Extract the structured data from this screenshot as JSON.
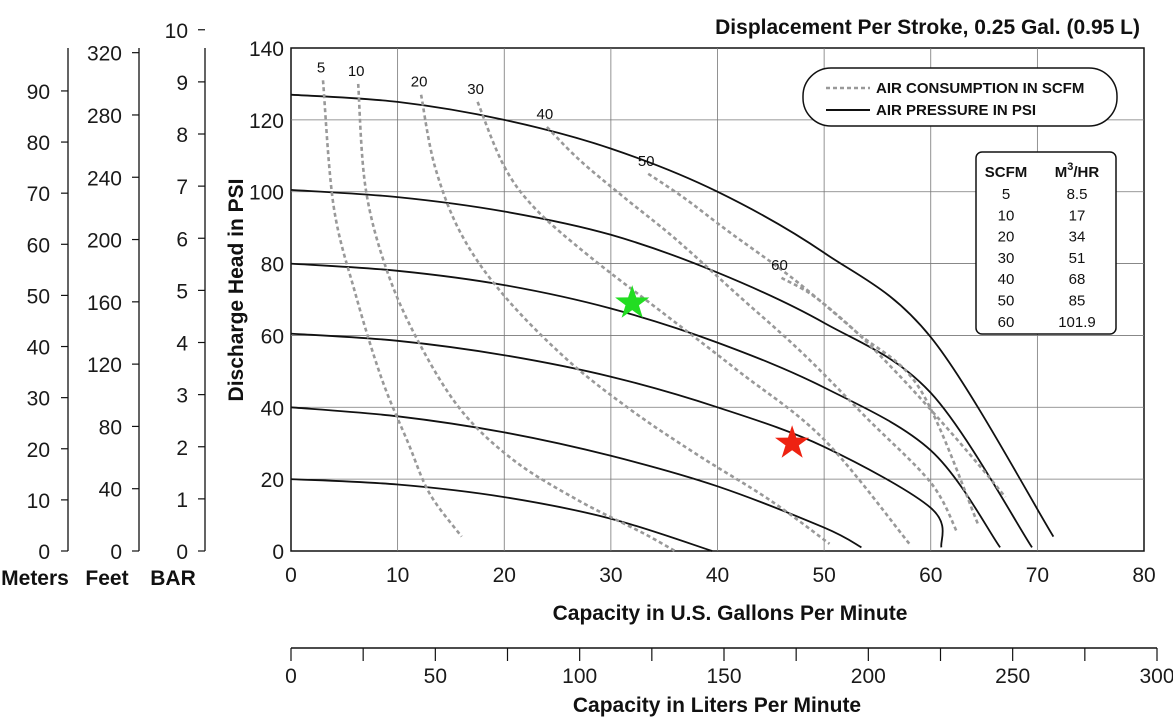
{
  "chart_data": {
    "type": "line",
    "title": "Displacement Per Stroke, 0.25 Gal. (0.95 L)",
    "xlabel": "Capacity in U.S. Gallons Per Minute",
    "ylabel": "Discharge Head in PSI",
    "xlim": [
      0,
      80
    ],
    "ylim": [
      0,
      140
    ],
    "x_ticks": [
      "0",
      "10",
      "20",
      "30",
      "40",
      "50",
      "60",
      "70",
      "80"
    ],
    "y_ticks": [
      "0",
      "20",
      "40",
      "60",
      "80",
      "100",
      "120",
      "140"
    ],
    "grid": true,
    "secondary_x_axis": {
      "label": "Capacity in Liters Per Minute",
      "range": [
        0,
        300
      ],
      "tick_labels": [
        "0",
        "50",
        "100",
        "150",
        "200",
        "250",
        "300"
      ]
    },
    "left_scales": [
      {
        "name": "Meters",
        "range": [
          0,
          98.4
        ],
        "tick_labels": [
          "0",
          "10",
          "20",
          "30",
          "40",
          "50",
          "60",
          "70",
          "80",
          "90"
        ]
      },
      {
        "name": "Feet",
        "range": [
          0,
          323
        ],
        "tick_labels": [
          "0",
          "40",
          "80",
          "120",
          "160",
          "200",
          "240",
          "280",
          "320"
        ]
      },
      {
        "name": "BAR",
        "range": [
          0,
          9.65
        ],
        "tick_labels": [
          "0",
          "1",
          "2",
          "3",
          "4",
          "5",
          "6",
          "7",
          "8",
          "9",
          "10"
        ]
      }
    ],
    "legend": {
      "position": "top-right",
      "entries": [
        {
          "label": "AIR CONSUMPTION IN SCFM",
          "style": "dashed",
          "color": "#999999"
        },
        {
          "label": "AIR PRESSURE IN PSI",
          "style": "solid",
          "color": "#111111"
        }
      ]
    },
    "air_pressure_series": [
      {
        "name": "20 psi",
        "points": [
          [
            0,
            20
          ],
          [
            10,
            18.5
          ],
          [
            20,
            15
          ],
          [
            30,
            9
          ],
          [
            39.5,
            0
          ]
        ]
      },
      {
        "name": "40 psi",
        "points": [
          [
            0,
            40
          ],
          [
            10,
            37.5
          ],
          [
            20,
            33
          ],
          [
            30,
            26.5
          ],
          [
            40,
            18
          ],
          [
            50,
            6.5
          ],
          [
            53.5,
            1
          ]
        ]
      },
      {
        "name": "60 psi",
        "points": [
          [
            0,
            60.5
          ],
          [
            10,
            58.5
          ],
          [
            20,
            54.5
          ],
          [
            30,
            48.5
          ],
          [
            40,
            40
          ],
          [
            50,
            29
          ],
          [
            60,
            12
          ],
          [
            61,
            1
          ]
        ]
      },
      {
        "name": "80 psi",
        "points": [
          [
            0,
            80
          ],
          [
            10,
            78
          ],
          [
            20,
            74
          ],
          [
            30,
            67.5
          ],
          [
            40,
            58
          ],
          [
            50,
            45.5
          ],
          [
            60,
            28
          ],
          [
            66.5,
            1
          ]
        ]
      },
      {
        "name": "100 psi",
        "points": [
          [
            0,
            100.5
          ],
          [
            10,
            98.5
          ],
          [
            20,
            94.5
          ],
          [
            30,
            88
          ],
          [
            40,
            77.5
          ],
          [
            50,
            63.5
          ],
          [
            60,
            44
          ],
          [
            69.5,
            1
          ]
        ]
      },
      {
        "name": "120 psi",
        "points": [
          [
            0,
            127
          ],
          [
            10,
            125
          ],
          [
            20,
            120
          ],
          [
            30,
            112
          ],
          [
            40,
            100
          ],
          [
            50,
            83
          ],
          [
            60,
            59.5
          ],
          [
            71.5,
            4
          ]
        ]
      }
    ],
    "air_consumption_series": [
      {
        "name": "5 SCFM",
        "label": "5",
        "points": [
          [
            3,
            131
          ],
          [
            4,
            96
          ],
          [
            6,
            72
          ],
          [
            8.5,
            48
          ],
          [
            11,
            30
          ],
          [
            13,
            16
          ],
          [
            16,
            4
          ]
        ]
      },
      {
        "name": "10 SCFM",
        "label": "10",
        "points": [
          [
            6.3,
            130
          ],
          [
            7,
            101
          ],
          [
            9,
            78
          ],
          [
            12,
            58
          ],
          [
            16,
            39
          ],
          [
            21,
            25
          ],
          [
            27,
            14
          ],
          [
            33,
            5
          ],
          [
            36,
            0
          ]
        ]
      },
      {
        "name": "20 SCFM",
        "label": "20",
        "points": [
          [
            12.2,
            127
          ],
          [
            13.5,
            107
          ],
          [
            16,
            88
          ],
          [
            20,
            71
          ],
          [
            26,
            53
          ],
          [
            32,
            39
          ],
          [
            38,
            27
          ],
          [
            45,
            14
          ],
          [
            50.5,
            2
          ]
        ]
      },
      {
        "name": "30 SCFM",
        "label": "30",
        "points": [
          [
            17.5,
            125
          ],
          [
            20,
            107
          ],
          [
            23,
            95
          ],
          [
            28,
            82
          ],
          [
            35,
            66
          ],
          [
            42,
            50
          ],
          [
            50,
            31
          ],
          [
            58,
            2
          ]
        ]
      },
      {
        "name": "40 SCFM",
        "label": "40",
        "points": [
          [
            24,
            118
          ],
          [
            27,
            109
          ],
          [
            31,
            99
          ],
          [
            36,
            87
          ],
          [
            42,
            71
          ],
          [
            48,
            55
          ],
          [
            54,
            37
          ],
          [
            60,
            19
          ],
          [
            62.5,
            5
          ]
        ]
      },
      {
        "name": "50 SCFM",
        "label": "50",
        "points": [
          [
            33.5,
            105
          ],
          [
            37,
            98
          ],
          [
            41,
            89
          ],
          [
            47,
            76
          ],
          [
            53,
            61
          ],
          [
            59,
            45
          ],
          [
            64.5,
            7
          ]
        ]
      },
      {
        "name": "60 SCFM",
        "label": "60",
        "points": [
          [
            46,
            76
          ],
          [
            49,
            71
          ],
          [
            53,
            61
          ],
          [
            57,
            49
          ],
          [
            61,
            36
          ],
          [
            64.5,
            24
          ],
          [
            67,
            15
          ]
        ]
      }
    ],
    "markers": [
      {
        "name": "green-star",
        "x": 32,
        "y": 69,
        "color": "#22dd22"
      },
      {
        "name": "red-star",
        "x": 47,
        "y": 30,
        "color": "#ee2211"
      }
    ],
    "conversion_table": {
      "headers": [
        "SCFM",
        "M3/HR"
      ],
      "rows": [
        [
          "5",
          "8.5"
        ],
        [
          "10",
          "17"
        ],
        [
          "20",
          "34"
        ],
        [
          "30",
          "51"
        ],
        [
          "40",
          "68"
        ],
        [
          "50",
          "85"
        ],
        [
          "60",
          "101.9"
        ]
      ]
    }
  }
}
